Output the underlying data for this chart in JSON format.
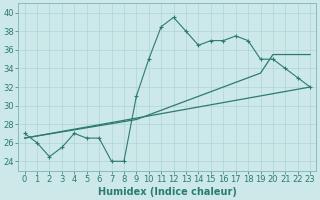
{
  "xlabel": "Humidex (Indice chaleur)",
  "ylabel": "",
  "bg_color": "#cce8e8",
  "line_color": "#2d7b6e",
  "grid_color": "#aed4d4",
  "xlim": [
    -0.5,
    23.5
  ],
  "ylim": [
    23.0,
    41.0
  ],
  "xticks": [
    0,
    1,
    2,
    3,
    4,
    5,
    6,
    7,
    8,
    9,
    10,
    11,
    12,
    13,
    14,
    15,
    16,
    17,
    18,
    19,
    20,
    21,
    22,
    23
  ],
  "yticks": [
    24,
    26,
    28,
    30,
    32,
    34,
    36,
    38,
    40
  ],
  "line1_x": [
    0,
    1,
    2,
    3,
    4,
    5,
    6,
    7,
    8,
    9,
    10,
    11,
    12,
    13,
    14,
    15,
    16,
    17,
    18,
    19,
    20,
    21,
    22,
    23
  ],
  "line1_y": [
    27,
    26,
    24.5,
    25.5,
    27,
    26.5,
    26.5,
    24,
    24,
    31,
    35,
    38.5,
    39.5,
    38,
    36.5,
    37,
    37,
    37.5,
    37,
    35,
    35,
    34,
    33,
    32
  ],
  "line2_x": [
    0,
    23
  ],
  "line2_y": [
    26.5,
    32
  ],
  "line3_x": [
    0,
    9,
    19,
    20,
    23
  ],
  "line3_y": [
    26.5,
    28.5,
    33.5,
    35.5,
    35.5
  ],
  "tick_fontsize": 6,
  "xlabel_fontsize": 7
}
